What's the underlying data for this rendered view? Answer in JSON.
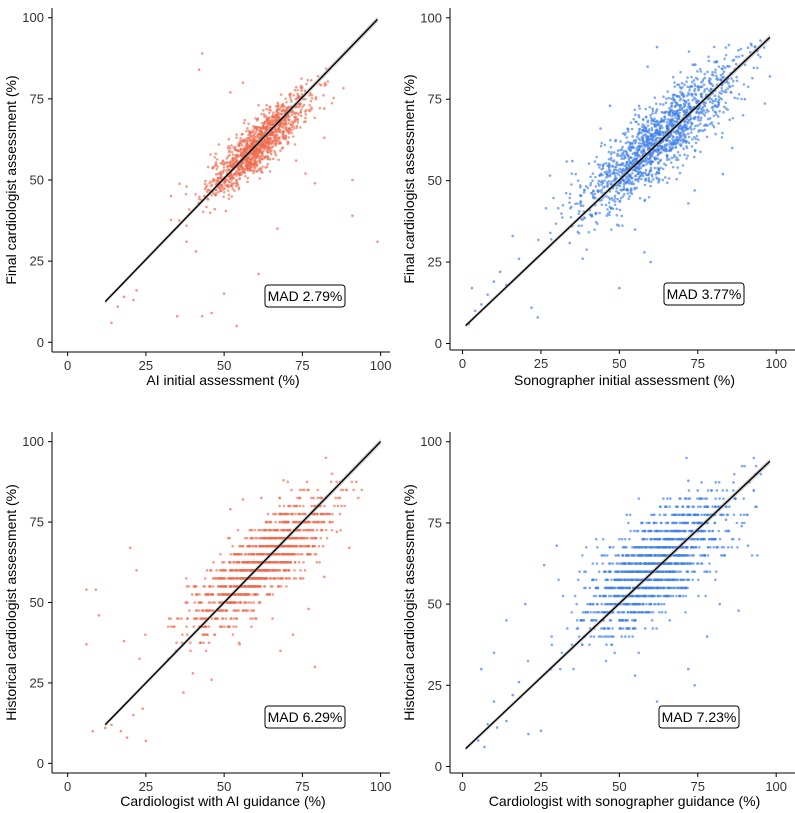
{
  "chart_data": [
    {
      "type": "scatter",
      "xlabel": "AI initial assessment (%)",
      "ylabel": "Final cardiologist assessment (%)",
      "xlim": [
        -5,
        103
      ],
      "ylim": [
        -3,
        103
      ],
      "xticks": [
        "0",
        "25",
        "50",
        "75",
        "100"
      ],
      "yticks": [
        "0",
        "25",
        "50",
        "75",
        "100"
      ],
      "annotation": "MAD 2.79%",
      "color": "#F06A4E",
      "fit_line": {
        "x": [
          12,
          99
        ],
        "y": [
          12.5,
          99.5
        ]
      },
      "cluster": {
        "cx": 61,
        "cy": 61,
        "sx": 8,
        "sy": 8,
        "rho": 0.88,
        "n": 1200
      },
      "points": [
        [
          43,
          89
        ],
        [
          42,
          84
        ],
        [
          91,
          50
        ],
        [
          91,
          39
        ],
        [
          99,
          31
        ],
        [
          79,
          49
        ],
        [
          82,
          63
        ],
        [
          50,
          15
        ],
        [
          54,
          5
        ],
        [
          46,
          9
        ],
        [
          43,
          8
        ],
        [
          38,
          31
        ],
        [
          41,
          28
        ],
        [
          21,
          13
        ],
        [
          14,
          6
        ],
        [
          16,
          11
        ],
        [
          18,
          14
        ],
        [
          22,
          16
        ],
        [
          82,
          72
        ],
        [
          80,
          82
        ],
        [
          56,
          80
        ],
        [
          52,
          77
        ],
        [
          33,
          45
        ],
        [
          38,
          48
        ],
        [
          47,
          41
        ],
        [
          61,
          21
        ],
        [
          76,
          52
        ],
        [
          73,
          56
        ],
        [
          67,
          35
        ],
        [
          35,
          8
        ]
      ]
    },
    {
      "type": "scatter",
      "xlabel": "Sonographer initial assessment (%)",
      "ylabel": "Final cardiologist assessment (%)",
      "xlim": [
        -4,
        106
      ],
      "ylim": [
        -2,
        103
      ],
      "xticks": [
        "0",
        "25",
        "50",
        "75",
        "100"
      ],
      "yticks": [
        "0",
        "25",
        "50",
        "75",
        "100"
      ],
      "annotation": "MAD 3.77%",
      "color": "#3F7FEA",
      "fit_line": {
        "x": [
          1,
          98
        ],
        "y": [
          5.5,
          94
        ]
      },
      "cluster": {
        "cx": 62,
        "cy": 62,
        "sx": 13,
        "sy": 12,
        "rho": 0.87,
        "n": 1500
      },
      "points": [
        [
          3,
          17
        ],
        [
          2,
          6
        ],
        [
          4,
          10
        ],
        [
          6,
          12
        ],
        [
          8,
          15
        ],
        [
          10,
          19
        ],
        [
          12,
          22
        ],
        [
          14,
          18
        ],
        [
          16,
          33
        ],
        [
          18,
          26
        ],
        [
          22,
          11
        ],
        [
          24,
          8
        ],
        [
          95,
          93
        ],
        [
          98,
          82
        ],
        [
          92,
          92
        ],
        [
          88,
          90
        ],
        [
          90,
          75
        ],
        [
          86,
          60
        ],
        [
          83,
          52
        ],
        [
          62,
          91
        ],
        [
          59,
          85
        ],
        [
          47,
          73
        ],
        [
          44,
          66
        ],
        [
          35,
          56
        ],
        [
          60,
          25
        ],
        [
          55,
          35
        ],
        [
          58,
          28
        ],
        [
          50,
          17
        ],
        [
          74,
          47
        ],
        [
          72,
          43
        ]
      ]
    },
    {
      "type": "scatter",
      "xlabel": "Cardiologist with AI guidance (%)",
      "ylabel": "Historical cardiologist assessment (%)",
      "xlim": [
        -5,
        103
      ],
      "ylim": [
        -3,
        103
      ],
      "xticks": [
        "0",
        "25",
        "50",
        "75",
        "100"
      ],
      "yticks": [
        "0",
        "25",
        "50",
        "75",
        "100"
      ],
      "annotation": "MAD 6.29%",
      "color": "#F06A4E",
      "fit_line": {
        "x": [
          12,
          100
        ],
        "y": [
          12,
          100
        ]
      },
      "cluster": {
        "cx": 62,
        "cy": 62,
        "sx": 11,
        "sy": 10,
        "rho": 0.8,
        "n": 1400
      },
      "points": [
        [
          6,
          54
        ],
        [
          9,
          54
        ],
        [
          10,
          46
        ],
        [
          6,
          37
        ],
        [
          8,
          10
        ],
        [
          12,
          11
        ],
        [
          14,
          12
        ],
        [
          17,
          10
        ],
        [
          19,
          8
        ],
        [
          21,
          15
        ],
        [
          24,
          17
        ],
        [
          25,
          7
        ],
        [
          20,
          67
        ],
        [
          22,
          60
        ],
        [
          18,
          38
        ],
        [
          90,
          67
        ],
        [
          86,
          72
        ],
        [
          78,
          80
        ],
        [
          75,
          85
        ],
        [
          69,
          88
        ],
        [
          56,
          82
        ],
        [
          52,
          79
        ],
        [
          79,
          30
        ],
        [
          82,
          58
        ],
        [
          77,
          48
        ],
        [
          72,
          40
        ],
        [
          68,
          35
        ],
        [
          55,
          37
        ],
        [
          46,
          26
        ],
        [
          40,
          28
        ],
        [
          37,
          22
        ]
      ]
    },
    {
      "type": "scatter",
      "xlabel": "Cardiologist with sonographer guidance (%)",
      "ylabel": "Historical cardiologist assessment (%)",
      "xlim": [
        -4,
        106
      ],
      "ylim": [
        -2,
        103
      ],
      "xticks": [
        "0",
        "25",
        "50",
        "75",
        "100"
      ],
      "yticks": [
        "0",
        "25",
        "50",
        "75",
        "100"
      ],
      "annotation": "MAD 7.23%",
      "color": "#3F7FEA",
      "fit_line": {
        "x": [
          1,
          98
        ],
        "y": [
          5.5,
          94
        ]
      },
      "cluster": {
        "cx": 62,
        "cy": 62,
        "sx": 12,
        "sy": 11,
        "rho": 0.72,
        "n": 1500
      },
      "points": [
        [
          5,
          8
        ],
        [
          7,
          6
        ],
        [
          8,
          13
        ],
        [
          10,
          20
        ],
        [
          11,
          12
        ],
        [
          14,
          14
        ],
        [
          16,
          22
        ],
        [
          18,
          26
        ],
        [
          21,
          10
        ],
        [
          25,
          11
        ],
        [
          6,
          30
        ],
        [
          10,
          35
        ],
        [
          14,
          45
        ],
        [
          20,
          50
        ],
        [
          26,
          62
        ],
        [
          30,
          68
        ],
        [
          72,
          88
        ],
        [
          75,
          85
        ],
        [
          78,
          80
        ],
        [
          84,
          76
        ],
        [
          89,
          74
        ],
        [
          91,
          68
        ],
        [
          94,
          65
        ],
        [
          82,
          50
        ],
        [
          78,
          40
        ],
        [
          72,
          30
        ],
        [
          74,
          25
        ],
        [
          62,
          20
        ],
        [
          55,
          28
        ],
        [
          88,
          48
        ]
      ]
    }
  ]
}
